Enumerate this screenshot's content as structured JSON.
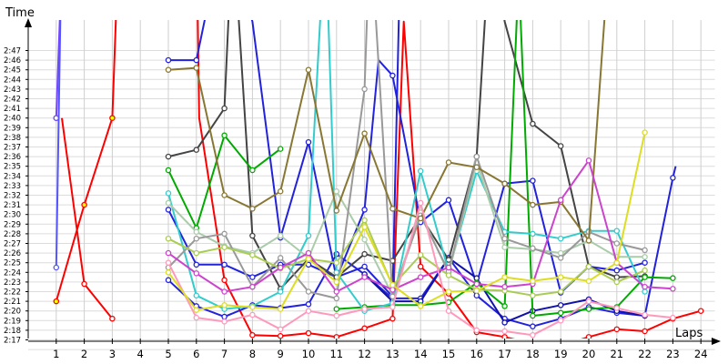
{
  "chart_data": {
    "type": "line",
    "xlabel": "Laps",
    "ylabel": "Time",
    "x_ticks": [
      "1",
      "2",
      "3",
      "4",
      "5",
      "6",
      "7",
      "8",
      "9",
      "10",
      "11",
      "12",
      "13",
      "14",
      "15",
      "16",
      "17",
      "18",
      "19",
      "20",
      "21",
      "22",
      "23",
      "24"
    ],
    "y_ticks": [
      "2:17",
      "2:18",
      "2:19",
      "2:20",
      "2:21",
      "2:22",
      "2:23",
      "2:24",
      "2:25",
      "2:26",
      "2:27",
      "2:28",
      "2:29",
      "2:30",
      "2:31",
      "2:32",
      "2:33",
      "2:34",
      "2:35",
      "2:36",
      "2:37",
      "2:38",
      "2:39",
      "2:40",
      "2:41",
      "2:42",
      "2:43",
      "2:44",
      "2:45",
      "2:46",
      "2:47"
    ],
    "ylim_seconds": [
      136,
      148
    ],
    "xlim": [
      0,
      24
    ],
    "grid": true,
    "series": [
      {
        "color": "#ff0000",
        "marker": "#ffff00",
        "x": [
          1,
          2,
          3,
          3.25
        ],
        "y": [
          141.0,
          151.0,
          160.0,
          180
        ]
      },
      {
        "color": "#ff0000",
        "marker": "#ffffff",
        "x": [
          1.2,
          2,
          3
        ],
        "y": [
          160.0,
          142.8,
          139.2
        ]
      },
      {
        "color": "#ff0000",
        "marker": "#ffffff",
        "x": [
          6,
          6.1,
          7,
          8,
          9,
          10,
          11,
          12,
          13,
          13.4,
          14,
          15,
          16,
          17,
          18,
          19,
          20,
          21,
          22,
          23,
          24
        ],
        "y": [
          180,
          160.0,
          143.2,
          137.5,
          137.4,
          137.7,
          137.3,
          138.2,
          139.2,
          170,
          144.6,
          141.8,
          137.8,
          137.3,
          136.6,
          136.4,
          137.3,
          138.1,
          137.9,
          139.2,
          140.0
        ]
      },
      {
        "color": "#2222dd",
        "marker": "#ffffff",
        "x": [
          5,
          6,
          7,
          8,
          9,
          10,
          11,
          12,
          13,
          14,
          15,
          16,
          17,
          18,
          19,
          20,
          21,
          22,
          23,
          23.1
        ],
        "y": [
          143.2,
          140.5,
          139.4,
          140.6,
          140.3,
          140.7,
          145.9,
          143.8,
          141.3,
          141.3,
          145.5,
          141.6,
          139.2,
          138.4,
          139.2,
          140.4,
          139.8,
          139.5,
          153.8,
          155
        ]
      },
      {
        "color": "#2222dd",
        "marker": "#ffffff",
        "x": [
          5,
          6,
          7,
          8,
          9,
          10,
          11,
          12,
          13,
          13.3
        ],
        "y": [
          150.5,
          144.8,
          144.8,
          143.5,
          144.8,
          144.8,
          143.5,
          144.6,
          141.5,
          180
        ]
      },
      {
        "color": "#2222dd",
        "marker": "#ffffff",
        "x": [
          5,
          6,
          7,
          8,
          9,
          10,
          11,
          12,
          12.5,
          13,
          14,
          15,
          16,
          17,
          18,
          19,
          20,
          21,
          22
        ],
        "y": [
          166.0,
          166.0,
          180,
          170.0,
          147.6,
          157.5,
          143.4,
          150.5,
          166,
          164.4,
          149.2,
          151.5,
          142.8,
          153.2,
          153.5,
          141.9,
          144.6,
          144.2,
          145.0
        ]
      },
      {
        "color": "#1111aa",
        "marker": "#ffffff",
        "x": [
          12,
          13,
          14,
          15,
          16,
          17,
          18,
          19,
          20,
          21,
          22
        ],
        "y": [
          143.8,
          141.0,
          141.0,
          145.5,
          143.4,
          138.8,
          140.0,
          140.6,
          141.2,
          140.0,
          139.5
        ]
      },
      {
        "color": "#444444",
        "marker": "#ffffff",
        "x": [
          5,
          6,
          7,
          7.3,
          8,
          9,
          10,
          11,
          12,
          13,
          14,
          15,
          16,
          16.5,
          17,
          18,
          19,
          20,
          21,
          22
        ],
        "y": [
          156.0,
          156.7,
          161.0,
          180,
          147.8,
          142.3,
          145.4,
          143.5,
          145.9,
          145.2,
          149.8,
          145.3,
          156.0,
          180,
          170,
          159.4,
          157.1,
          144.6,
          143.5,
          143.6
        ]
      },
      {
        "color": "#00aa00",
        "marker": "#ffffff",
        "x": [
          5,
          6,
          7,
          8,
          9
        ],
        "y": [
          154.6,
          148.6,
          158.2,
          154.6,
          156.8
        ]
      },
      {
        "color": "#00aa00",
        "marker": "#ffffff",
        "x": [
          11,
          12,
          13,
          14,
          15,
          16,
          17,
          17.5,
          18,
          19,
          20,
          21,
          22,
          23
        ],
        "y": [
          140.2,
          140.4,
          140.6,
          140.6,
          140.9,
          142.9,
          140.5,
          175,
          139.5,
          139.8,
          140.2,
          140.4,
          143.5,
          143.4
        ]
      },
      {
        "color": "#33cccc",
        "marker": "#ffffff",
        "x": [
          5,
          6,
          7,
          8,
          9,
          10,
          10.6,
          11,
          12,
          13,
          14,
          15,
          16,
          17,
          18,
          19,
          20,
          21,
          22
        ],
        "y": [
          152.2,
          141.6,
          140.2,
          140.5,
          142.0,
          147.8,
          180,
          144.0,
          140.0,
          140.8,
          154.5,
          144.1,
          154.5,
          148.2,
          148.0,
          147.5,
          148.3,
          148.3,
          142.0
        ]
      },
      {
        "color": "#aaccaa",
        "marker": "#ffffff",
        "x": [
          5,
          6,
          7,
          8,
          9,
          10,
          11,
          12,
          13,
          14,
          15,
          16,
          17,
          18,
          19,
          20,
          21,
          22
        ],
        "y": [
          151.2,
          148.2,
          146.7,
          146.0,
          147.8,
          145.5,
          152.4,
          147.4,
          141.6,
          150.2,
          143.9,
          155.4,
          146.6,
          146.4,
          146.0,
          147.3,
          145.6,
          145.6
        ]
      },
      {
        "color": "#999999",
        "marker": "#ffffff",
        "x": [
          5,
          6,
          7,
          8,
          9,
          10,
          11,
          12,
          12.2,
          13,
          14,
          15,
          16,
          17,
          18,
          19,
          20,
          21,
          22
        ],
        "y": [
          144.5,
          147.5,
          148.0,
          142.5,
          145.5,
          142.0,
          141.3,
          163.0,
          180,
          141.5,
          149.9,
          144.1,
          156.0,
          147.5,
          146.5,
          145.5,
          148.2,
          147.0,
          146.3
        ]
      },
      {
        "color": "#887733",
        "marker": "#ffffff",
        "x": [
          5,
          6,
          7,
          8,
          9,
          10,
          11,
          12,
          13,
          14,
          15,
          16,
          17,
          18,
          19,
          20,
          20.8
        ],
        "y": [
          165.0,
          165.2,
          152.0,
          150.6,
          152.4,
          165.0,
          150.4,
          158.4,
          150.6,
          149.6,
          155.4,
          154.9,
          153.2,
          151.0,
          151.3,
          147.3,
          180
        ]
      },
      {
        "color": "#aacc55",
        "marker": "#ffffff",
        "x": [
          5,
          6,
          7,
          8,
          9,
          10,
          11,
          12,
          13,
          14,
          15,
          16,
          17,
          18,
          19,
          20,
          21,
          22
        ],
        "y": [
          147.5,
          146.0,
          146.6,
          145.8,
          144.4,
          145.4,
          145.0,
          149.4,
          142.6,
          145.8,
          143.7,
          142.2,
          142.1,
          141.6,
          142.0,
          144.6,
          143.0,
          144.2
        ]
      },
      {
        "color": "#cc44cc",
        "marker": "#ffffff",
        "x": [
          5,
          6,
          7,
          8,
          9,
          10,
          11,
          12,
          13,
          14,
          15,
          16,
          17,
          18,
          19,
          20,
          21,
          22,
          23
        ],
        "y": [
          146.0,
          143.9,
          142.0,
          142.5,
          144.5,
          146.0,
          142.0,
          143.5,
          142.2,
          143.5,
          144.5,
          142.8,
          142.5,
          142.8,
          151.5,
          155.6,
          145.0,
          142.5,
          142.3
        ]
      },
      {
        "color": "#ff99bb",
        "marker": "#ffffff",
        "x": [
          5,
          6,
          7,
          8,
          9,
          10,
          11,
          12,
          13,
          14,
          15,
          16,
          17,
          18,
          19,
          20,
          21,
          22,
          23
        ],
        "y": [
          145.0,
          139.3,
          138.9,
          139.6,
          138.1,
          140.0,
          139.5,
          140.2,
          140.4,
          151.2,
          140.0,
          138.0,
          137.9,
          137.5,
          139.0,
          141.0,
          140.3,
          139.6,
          139.3
        ]
      },
      {
        "color": "#dddd22",
        "marker": "#ffffff",
        "x": [
          5,
          6,
          7,
          8,
          9,
          10,
          11,
          12,
          13,
          14,
          15,
          16,
          17,
          18,
          19,
          20,
          21,
          22
        ],
        "y": [
          144.0,
          140.1,
          140.6,
          140.4,
          140.2,
          145.4,
          143.0,
          148.7,
          142.7,
          140.5,
          142.0,
          142.1,
          143.5,
          143.1,
          143.5,
          143.1,
          145.0,
          158.5
        ]
      },
      {
        "color": "#7744ff",
        "marker": "#ffffff",
        "x": [
          1,
          1.25,
          1.25,
          1
        ],
        "y": [
          160.0,
          180,
          180,
          160.0
        ]
      },
      {
        "color": "#5555ff",
        "marker": "#ffffff",
        "x": [
          1,
          1.2
        ],
        "y": [
          144.5,
          180
        ]
      }
    ]
  }
}
